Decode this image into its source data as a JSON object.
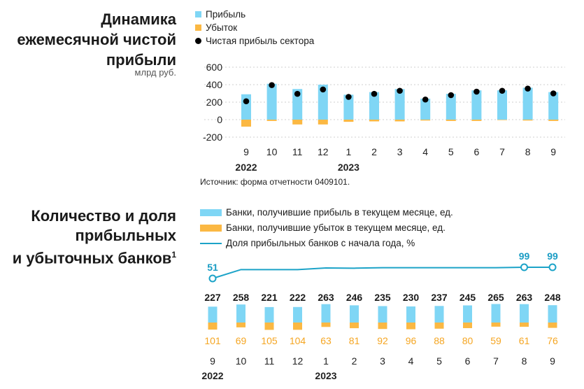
{
  "colors": {
    "profit": "#7fd6f5",
    "loss": "#fbb843",
    "net": "#000000",
    "share_line": "#1ca3c8",
    "share_label": "#1a9cc4",
    "loss_label": "#f5a623"
  },
  "section1": {
    "title_lines": [
      "Динамика",
      "ежемесячной чистой",
      "прибыли"
    ],
    "unit": "млрд руб.",
    "legend": {
      "profit": "Прибыль",
      "loss": "Убыток",
      "net": "Чистая прибыль сектора"
    },
    "source": "Источник: форма отчетности 0409101."
  },
  "section2": {
    "title_lines": [
      "Количество и доля",
      "прибыльных",
      "и убыточных банков"
    ],
    "title_footnote": "1",
    "legend": {
      "profit_banks": "Банки, получившие прибыль в текущем месяце, ед.",
      "loss_banks": "Банки, получившие убыток в текущем месяце, ед.",
      "share": "Доля прибыльных банков с начала года, %"
    }
  },
  "chart_data": [
    {
      "type": "bar",
      "categories": [
        "9",
        "10",
        "11",
        "12",
        "1",
        "2",
        "3",
        "4",
        "5",
        "6",
        "7",
        "8",
        "9"
      ],
      "year_labels": [
        {
          "label": "2022",
          "category_index": 0
        },
        {
          "label": "2023",
          "category_index": 4
        }
      ],
      "series": [
        {
          "name": "Прибыль",
          "values": [
            290,
            410,
            350,
            400,
            285,
            315,
            350,
            240,
            295,
            335,
            335,
            365,
            315
          ]
        },
        {
          "name": "Убыток",
          "values": [
            -80,
            -15,
            -55,
            -55,
            -25,
            -20,
            -20,
            -10,
            -15,
            -15,
            -5,
            -10,
            -15
          ]
        },
        {
          "name": "Чистая прибыль сектора",
          "values": [
            210,
            395,
            295,
            345,
            260,
            295,
            330,
            230,
            280,
            320,
            330,
            355,
            300
          ]
        }
      ],
      "yticks": [
        600,
        400,
        200,
        0,
        -200
      ],
      "ylim": [
        -200,
        600
      ]
    },
    {
      "type": "bar",
      "categories": [
        "9",
        "10",
        "11",
        "12",
        "1",
        "2",
        "3",
        "4",
        "5",
        "6",
        "7",
        "8",
        "9"
      ],
      "year_labels": [
        {
          "label": "2022",
          "category_index": 0
        },
        {
          "label": "2023",
          "category_index": 4
        }
      ],
      "series": [
        {
          "name": "Банки, получившие прибыль в текущем месяце, ед.",
          "values": [
            227,
            258,
            221,
            222,
            263,
            246,
            235,
            230,
            237,
            245,
            265,
            263,
            248
          ]
        },
        {
          "name": "Банки, получившие убыток в текущем месяце, ед.",
          "values": [
            101,
            69,
            105,
            104,
            63,
            81,
            92,
            96,
            88,
            80,
            59,
            61,
            76
          ]
        },
        {
          "name": "Доля прибыльных банков с начала года, %",
          "values": [
            51,
            89,
            89,
            89,
            96,
            95,
            97,
            97,
            97,
            97,
            97,
            99,
            99
          ],
          "labeled_points": [
            0,
            11,
            12
          ]
        }
      ]
    }
  ]
}
